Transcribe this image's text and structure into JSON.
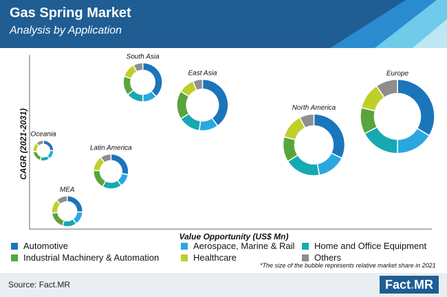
{
  "header": {
    "title": "Gas Spring Market",
    "subtitle": "Analysis by Application"
  },
  "footer": {
    "source": "Source: Fact.MR",
    "logo_text": "Fact",
    "logo_suffix": "MR",
    "footnote": "*The size of the bubble represents relative market share in 2021"
  },
  "colors": {
    "header_bg": "#1f5d93",
    "accent": "#5fc8e8"
  },
  "chart_data": {
    "type": "bubble-donut",
    "xlabel": "Value Opportunity (US$ Mn)",
    "ylabel": "CAGR (2021-2031)",
    "series": [
      {
        "name": "Automotive",
        "color": "#1b75bb"
      },
      {
        "name": "Aerospace, Marine & Rail",
        "color": "#29a8e0"
      },
      {
        "name": "Home and Office Equipment",
        "color": "#16a9b2"
      },
      {
        "name": "Industrial Machinery & Automation",
        "color": "#5aa43c"
      },
      {
        "name": "Healthcare",
        "color": "#bfcf2a"
      },
      {
        "name": "Others",
        "color": "#8e8e8e"
      }
    ],
    "regions": [
      {
        "name": "Oceania",
        "x": 1.0,
        "y": 5.2,
        "size": 1.0,
        "shares": [
          25,
          15,
          15,
          18,
          15,
          12
        ]
      },
      {
        "name": "MEA",
        "x": 1.6,
        "y": 2.0,
        "size": 1.5,
        "shares": [
          26,
          14,
          15,
          18,
          15,
          12
        ]
      },
      {
        "name": "Latin America",
        "x": 2.7,
        "y": 4.1,
        "size": 1.7,
        "shares": [
          28,
          12,
          18,
          18,
          14,
          10
        ]
      },
      {
        "name": "South Asia",
        "x": 3.5,
        "y": 8.8,
        "size": 1.9,
        "shares": [
          38,
          12,
          14,
          16,
          12,
          8
        ]
      },
      {
        "name": "East Asia",
        "x": 5.0,
        "y": 7.6,
        "size": 2.5,
        "shares": [
          40,
          12,
          14,
          18,
          10,
          6
        ]
      },
      {
        "name": "North America",
        "x": 7.8,
        "y": 5.5,
        "size": 3.0,
        "shares": [
          34,
          16,
          20,
          14,
          14,
          8
        ]
      },
      {
        "name": "Europe",
        "x": 9.9,
        "y": 7.0,
        "size": 3.6,
        "shares": [
          35,
          17,
          18,
          12,
          12,
          10
        ]
      }
    ]
  }
}
